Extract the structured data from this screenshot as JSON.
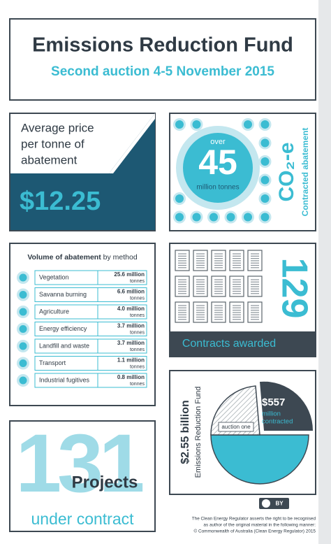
{
  "header": {
    "title": "Emissions Reduction Fund",
    "subtitle": "Second auction 4-5 November 2015"
  },
  "price": {
    "label_lines": [
      "Average price",
      "per tonne of",
      "abatement"
    ],
    "value": "$12.25"
  },
  "abatement": {
    "prefix": "over",
    "value": "45",
    "unit": "million tonnes",
    "symbol": "CO₂-e",
    "caption": "Contracted abatement"
  },
  "volume": {
    "title_bold": "Volume of abatement",
    "title_rest": "by method",
    "rows": [
      {
        "method": "Vegetation",
        "amount": "25.6 million",
        "unit": "tonnes"
      },
      {
        "method": "Savanna burning",
        "amount": "6.6 million",
        "unit": "tonnes"
      },
      {
        "method": "Agriculture",
        "amount": "4.0 million",
        "unit": "tonnes"
      },
      {
        "method": "Energy efficiency",
        "amount": "3.7 million",
        "unit": "tonnes"
      },
      {
        "method": "Landfill and waste",
        "amount": "3.7 million",
        "unit": "tonnes"
      },
      {
        "method": "Transport",
        "amount": "1.1 million",
        "unit": "tonnes"
      },
      {
        "method": "Industrial fugitives",
        "amount": "0.8 million",
        "unit": "tonnes"
      }
    ]
  },
  "contracts": {
    "value": "129",
    "label": "Contracts awarded"
  },
  "fund": {
    "total": "$2.55 billion",
    "name": "Emissions Reduction Fund",
    "slice_value": "$557",
    "slice_label_lines": [
      "million",
      "contracted"
    ],
    "auction_label": "auction one"
  },
  "projects": {
    "value": "131",
    "label": "Projects",
    "sublabel": "under contract"
  },
  "footer": {
    "license": "BY",
    "lines": [
      "The Clean Energy Regulator asserts the right to be recognised",
      "as author of the original material in the following manner:",
      "© Commonwealth of Australia (Clean Energy Regulator) 2015"
    ]
  }
}
